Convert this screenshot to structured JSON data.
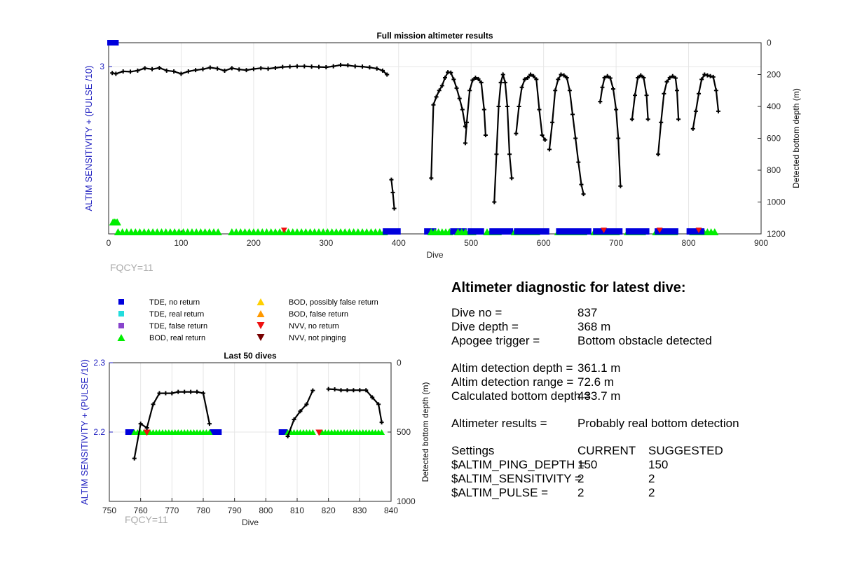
{
  "colors": {
    "bottom_line": "#000000",
    "bod_real": "#00ee00",
    "tde_no_return": "#0000dd",
    "tde_real": "#22dddd",
    "tde_false": "#8844cc",
    "bod_possibly_false": "#ffd000",
    "bod_false": "#ff9900",
    "nvv_no_return": "#ee1111",
    "nvv_not_pinging": "#770000",
    "left_axis": "#2020c0",
    "fqcy_text": "#aaaaaa"
  },
  "legend": [
    {
      "label": "TDE, no return",
      "marker": "square",
      "color": "#0000dd"
    },
    {
      "label": "TDE, real return",
      "marker": "square",
      "color": "#22dddd"
    },
    {
      "label": "TDE, false return",
      "marker": "square",
      "color": "#8844cc"
    },
    {
      "label": "BOD, real return",
      "marker": "triangle-up",
      "color": "#00ee00"
    },
    {
      "label": "BOD, possibly false return",
      "marker": "triangle-up",
      "color": "#ffd000"
    },
    {
      "label": "BOD, false return",
      "marker": "triangle-up",
      "color": "#ff9900"
    },
    {
      "label": "NVV, no return",
      "marker": "triangle-down",
      "color": "#ee1111"
    },
    {
      "label": "NVV, not pinging",
      "marker": "triangle-down",
      "color": "#770000"
    }
  ],
  "chart_data": [
    {
      "type": "scatter",
      "title": "Full mission altimeter results",
      "xlabel": "Dive",
      "ylabel_left": "ALTIM SENSITIVITY + (PULSE /10)",
      "ylabel_right": "Detected bottom depth (m)",
      "annotation": "FQCY=11",
      "xlim": [
        0,
        900
      ],
      "xticks": [
        0,
        100,
        200,
        300,
        400,
        500,
        600,
        700,
        800,
        900
      ],
      "ylim_right": [
        0,
        1200
      ],
      "right_ticks": [
        0,
        200,
        400,
        600,
        800,
        1000,
        1200
      ],
      "left_ticks": [
        3
      ],
      "left_range": [
        1.6,
        3.2
      ],
      "grid": true,
      "settings_markers": [
        {
          "x": 1,
          "x2": 11,
          "y": 3.2
        }
      ],
      "early_bod_points": [
        {
          "x": 6,
          "y": 1.7
        },
        {
          "x": 8,
          "y": 1.7
        },
        {
          "x": 10,
          "y": 1.7
        },
        {
          "x": 12,
          "y": 1.7
        }
      ],
      "detection_rows": [
        {
          "type": "bod",
          "from": 13,
          "to": 155,
          "step": 6
        },
        {
          "type": "bod",
          "from": 170,
          "to": 380,
          "step": 6
        },
        {
          "type": "tde",
          "from": 383,
          "to": 400,
          "step": 8
        },
        {
          "type": "tde",
          "from": 440,
          "to": 454,
          "step": 8
        },
        {
          "type": "bod",
          "from": 445,
          "to": 470,
          "step": 5
        },
        {
          "type": "tde",
          "from": 476,
          "to": 490,
          "step": 7
        },
        {
          "type": "bod",
          "from": 482,
          "to": 505,
          "step": 5
        },
        {
          "type": "tde",
          "from": 500,
          "to": 514,
          "step": 7
        },
        {
          "type": "bod",
          "from": 522,
          "to": 540,
          "step": 5
        },
        {
          "type": "tde",
          "from": 530,
          "to": 556,
          "step": 8
        },
        {
          "type": "bod",
          "from": 560,
          "to": 594,
          "step": 5
        },
        {
          "type": "tde",
          "from": 564,
          "to": 610,
          "step": 8
        },
        {
          "type": "bod",
          "from": 620,
          "to": 656,
          "step": 5
        },
        {
          "type": "tde",
          "from": 622,
          "to": 666,
          "step": 8
        },
        {
          "type": "bod",
          "from": 670,
          "to": 700,
          "step": 5
        },
        {
          "type": "tde",
          "from": 673,
          "to": 705,
          "step": 8
        },
        {
          "type": "bod",
          "from": 716,
          "to": 740,
          "step": 5
        },
        {
          "type": "tde",
          "from": 718,
          "to": 746,
          "step": 8
        },
        {
          "type": "bod",
          "from": 755,
          "to": 784,
          "step": 5
        },
        {
          "type": "tde",
          "from": 758,
          "to": 786,
          "step": 8
        },
        {
          "type": "bod",
          "from": 806,
          "to": 838,
          "step": 5
        },
        {
          "type": "tde",
          "from": 802,
          "to": 818,
          "step": 8
        }
      ],
      "nvv_points": [
        {
          "x": 242
        },
        {
          "x": 683
        },
        {
          "x": 760
        },
        {
          "x": 814
        }
      ],
      "bottom_depth_segments": [
        [
          [
            5,
            190
          ],
          [
            10,
            195
          ],
          [
            20,
            180
          ],
          [
            30,
            182
          ],
          [
            40,
            175
          ],
          [
            50,
            160
          ],
          [
            60,
            166
          ],
          [
            70,
            158
          ],
          [
            80,
            175
          ],
          [
            90,
            180
          ],
          [
            100,
            195
          ],
          [
            110,
            180
          ],
          [
            120,
            172
          ],
          [
            130,
            166
          ],
          [
            140,
            156
          ],
          [
            150,
            162
          ],
          [
            160,
            176
          ],
          [
            170,
            160
          ],
          [
            180,
            168
          ],
          [
            190,
            172
          ],
          [
            200,
            165
          ],
          [
            210,
            160
          ],
          [
            220,
            163
          ],
          [
            230,
            158
          ],
          [
            240,
            152
          ],
          [
            250,
            150
          ],
          [
            260,
            148
          ],
          [
            270,
            148
          ],
          [
            280,
            150
          ],
          [
            290,
            152
          ],
          [
            300,
            154
          ],
          [
            310,
            148
          ],
          [
            320,
            140
          ],
          [
            330,
            142
          ],
          [
            340,
            148
          ],
          [
            350,
            150
          ],
          [
            360,
            155
          ],
          [
            370,
            162
          ],
          [
            378,
            175
          ],
          [
            384,
            200
          ]
        ],
        [
          [
            390,
            860
          ],
          [
            392,
            940
          ],
          [
            394,
            1040
          ]
        ],
        [
          [
            445,
            850
          ],
          [
            448,
            390
          ],
          [
            452,
            340
          ],
          [
            456,
            300
          ],
          [
            460,
            270
          ],
          [
            464,
            220
          ],
          [
            468,
            185
          ],
          [
            472,
            188
          ],
          [
            476,
            230
          ],
          [
            480,
            285
          ],
          [
            484,
            350
          ],
          [
            488,
            420
          ],
          [
            492,
            525
          ]
        ],
        [
          [
            492,
            630
          ],
          [
            494,
            500
          ],
          [
            498,
            300
          ],
          [
            502,
            235
          ],
          [
            506,
            220
          ],
          [
            510,
            228
          ],
          [
            514,
            250
          ],
          [
            518,
            420
          ],
          [
            520,
            580
          ]
        ],
        [
          [
            532,
            1000
          ],
          [
            535,
            700
          ],
          [
            538,
            400
          ],
          [
            541,
            250
          ],
          [
            544,
            200
          ],
          [
            547,
            250
          ],
          [
            550,
            400
          ],
          [
            553,
            700
          ],
          [
            556,
            850
          ]
        ],
        [
          [
            562,
            570
          ],
          [
            566,
            400
          ],
          [
            570,
            280
          ],
          [
            574,
            230
          ],
          [
            578,
            220
          ],
          [
            582,
            200
          ],
          [
            586,
            210
          ],
          [
            590,
            230
          ],
          [
            594,
            420
          ],
          [
            598,
            580
          ],
          [
            602,
            610
          ]
        ],
        [
          [
            608,
            670
          ],
          [
            612,
            500
          ],
          [
            616,
            300
          ],
          [
            620,
            230
          ],
          [
            624,
            200
          ],
          [
            628,
            205
          ],
          [
            632,
            220
          ],
          [
            636,
            300
          ],
          [
            640,
            450
          ],
          [
            644,
            600
          ],
          [
            648,
            750
          ],
          [
            652,
            890
          ],
          [
            655,
            950
          ]
        ],
        [
          [
            678,
            370
          ],
          [
            681,
            280
          ],
          [
            684,
            220
          ],
          [
            688,
            210
          ],
          [
            692,
            222
          ],
          [
            696,
            290
          ],
          [
            700,
            420
          ],
          [
            703,
            600
          ],
          [
            706,
            900
          ]
        ],
        [
          [
            722,
            480
          ],
          [
            726,
            330
          ],
          [
            730,
            220
          ],
          [
            734,
            205
          ],
          [
            738,
            220
          ],
          [
            742,
            330
          ],
          [
            744,
            480
          ]
        ],
        [
          [
            758,
            700
          ],
          [
            762,
            500
          ],
          [
            766,
            320
          ],
          [
            770,
            245
          ],
          [
            774,
            220
          ],
          [
            778,
            210
          ],
          [
            782,
            222
          ],
          [
            784,
            300
          ],
          [
            786,
            480
          ]
        ],
        [
          [
            806,
            540
          ],
          [
            810,
            430
          ],
          [
            814,
            320
          ],
          [
            818,
            230
          ],
          [
            822,
            200
          ],
          [
            826,
            205
          ],
          [
            830,
            210
          ],
          [
            834,
            215
          ],
          [
            838,
            300
          ],
          [
            841,
            430
          ]
        ]
      ]
    },
    {
      "type": "scatter",
      "title": "Last 50 dives",
      "xlabel": "Dive",
      "ylabel_left": "ALTIM SENSITIVITY + (PULSE /10)",
      "ylabel_right": "Detected bottom depth (m)",
      "annotation": "FQCY=11",
      "xlim": [
        750,
        840
      ],
      "xticks": [
        750,
        760,
        770,
        780,
        790,
        800,
        810,
        820,
        830,
        840
      ],
      "ylim_right": [
        0,
        1000
      ],
      "right_ticks": [
        0,
        500,
        1000
      ],
      "left_ticks": [
        2.2,
        2.3
      ],
      "left_range": [
        2.1,
        2.3
      ],
      "grid": true,
      "tde_points": [
        756,
        757,
        783,
        784,
        785,
        805,
        806
      ],
      "bod_points": [
        758,
        759,
        760,
        761,
        762,
        763,
        764,
        765,
        766,
        767,
        768,
        769,
        770,
        771,
        772,
        773,
        774,
        775,
        776,
        777,
        778,
        779,
        780,
        781,
        782,
        807,
        808,
        809,
        810,
        811,
        812,
        813,
        814,
        815,
        818,
        819,
        820,
        821,
        822,
        823,
        824,
        825,
        826,
        827,
        828,
        829,
        830,
        831,
        832,
        833,
        834,
        835,
        836,
        837
      ],
      "nvv_points": [
        762,
        817
      ],
      "bottom_depth_segments": [
        [
          [
            758,
            690
          ],
          [
            760,
            440
          ],
          [
            762,
            470
          ],
          [
            764,
            300
          ],
          [
            766,
            220
          ],
          [
            768,
            220
          ],
          [
            770,
            220
          ],
          [
            772,
            210
          ],
          [
            774,
            210
          ],
          [
            776,
            210
          ],
          [
            778,
            210
          ],
          [
            780,
            220
          ],
          [
            782,
            440
          ]
        ],
        [
          [
            807,
            530
          ],
          [
            809,
            410
          ],
          [
            811,
            350
          ],
          [
            813,
            300
          ],
          [
            815,
            200
          ]
        ],
        [
          [
            820,
            190
          ],
          [
            822,
            192
          ],
          [
            824,
            198
          ],
          [
            826,
            198
          ],
          [
            828,
            198
          ],
          [
            830,
            198
          ],
          [
            832,
            198
          ],
          [
            834,
            250
          ],
          [
            836,
            300
          ],
          [
            837,
            430
          ]
        ]
      ]
    }
  ],
  "diagnostic": {
    "title": "Altimeter diagnostic for latest dive:",
    "dive_no_label": "Dive no =",
    "dive_no_value": "837",
    "dive_depth_label": "Dive depth =",
    "dive_depth_value": "368 m",
    "apogee_label": "Apogee trigger =",
    "apogee_value": "Bottom obstacle detected",
    "detection_depth_label": "Altim detection depth =",
    "detection_depth_value": "361.1 m",
    "detection_range_label": "Altim detection range =",
    "detection_range_value": "72.6 m",
    "bottom_depth_label": "Calculated bottom depth =",
    "bottom_depth_value": "433.7 m",
    "results_label": "Altimeter results =",
    "results_value": "Probably real bottom detection",
    "settings_label": "Settings",
    "current_label": "CURRENT",
    "suggested_label": "SUGGESTED",
    "settings": [
      {
        "name": "$ALTIM_PING_DEPTH =",
        "current": "150",
        "suggested": "150"
      },
      {
        "name": "$ALTIM_SENSITIVITY =",
        "current": "2",
        "suggested": "2"
      },
      {
        "name": "$ALTIM_PULSE =",
        "current": "2",
        "suggested": "2"
      }
    ]
  }
}
